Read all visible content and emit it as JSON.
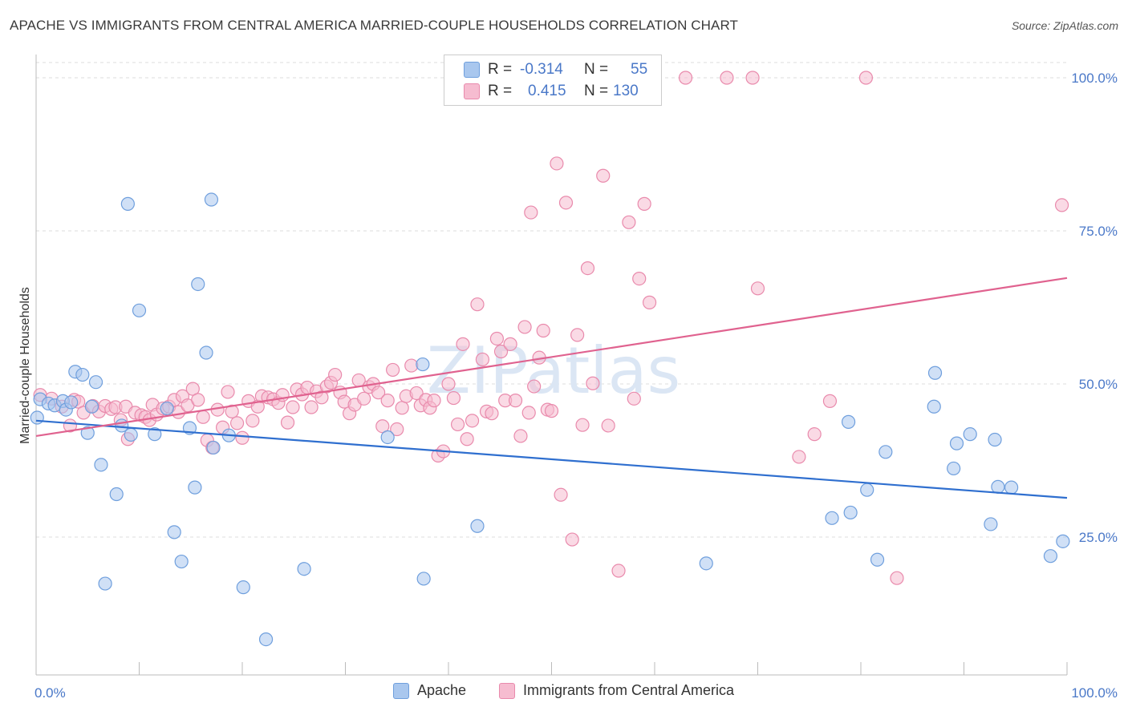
{
  "title": "APACHE VS IMMIGRANTS FROM CENTRAL AMERICA MARRIED-COUPLE HOUSEHOLDS CORRELATION CHART",
  "source": "Source: ZipAtlas.com",
  "colors": {
    "blue_fill": "#a9c7ee",
    "blue_stroke": "#6f9fdd",
    "blue_line": "#2f6fcf",
    "pink_fill": "#f6bcd0",
    "pink_stroke": "#e98aac",
    "pink_line": "#e0628f",
    "accent_text": "#4a78c8",
    "grid": "#dddddd"
  },
  "legend_top": {
    "rows": [
      {
        "r_label": "R =",
        "r_value": "-0.314",
        "n_label": "N =",
        "n_value": "55"
      },
      {
        "r_label": "R =",
        "r_value": "0.415",
        "n_label": "N =",
        "n_value": "130"
      }
    ]
  },
  "legend_bottom": {
    "items": [
      "Apache",
      "Immigrants from Central America"
    ]
  },
  "chart_data": {
    "type": "scatter",
    "title": "APACHE VS IMMIGRANTS FROM CENTRAL AMERICA MARRIED-COUPLE HOUSEHOLDS CORRELATION CHART",
    "xlabel": "",
    "ylabel": "Married-couple Households",
    "xlim": [
      0,
      100
    ],
    "ylim": [
      0,
      100
    ],
    "x_tick_labels": [
      "0.0%",
      "100.0%"
    ],
    "y_tick_labels": [
      "100.0%",
      "75.0%",
      "50.0%",
      "25.0%"
    ],
    "y_ticks": [
      100,
      75,
      50,
      25
    ],
    "watermark": "ZIPatlas",
    "series": [
      {
        "name": "Apache",
        "color": "blue",
        "trend": {
          "x": [
            0,
            100
          ],
          "y": [
            44.0,
            31.4
          ]
        },
        "points": [
          [
            0.4,
            47.5
          ],
          [
            1.2,
            46.8
          ],
          [
            1.8,
            46.5
          ],
          [
            2.6,
            47.2
          ],
          [
            2.9,
            45.8
          ],
          [
            3.4,
            47.0
          ],
          [
            3.8,
            52.0
          ],
          [
            4.5,
            51.5
          ],
          [
            5.0,
            42.0
          ],
          [
            5.4,
            46.3
          ],
          [
            5.8,
            50.3
          ],
          [
            6.3,
            36.8
          ],
          [
            6.7,
            17.4
          ],
          [
            7.8,
            32.0
          ],
          [
            8.3,
            43.2
          ],
          [
            8.9,
            79.4
          ],
          [
            9.2,
            41.7
          ],
          [
            10.0,
            62.0
          ],
          [
            11.5,
            41.8
          ],
          [
            12.7,
            46.0
          ],
          [
            13.4,
            25.8
          ],
          [
            14.1,
            21.0
          ],
          [
            14.9,
            42.8
          ],
          [
            15.4,
            33.1
          ],
          [
            15.7,
            66.3
          ],
          [
            16.5,
            55.1
          ],
          [
            17.0,
            80.1
          ],
          [
            17.2,
            39.6
          ],
          [
            18.7,
            41.6
          ],
          [
            20.1,
            16.8
          ],
          [
            22.3,
            8.3
          ],
          [
            26.0,
            19.8
          ],
          [
            34.1,
            41.3
          ],
          [
            37.5,
            53.2
          ],
          [
            37.6,
            18.2
          ],
          [
            42.8,
            26.8
          ],
          [
            65.0,
            20.7
          ],
          [
            77.2,
            28.1
          ],
          [
            78.8,
            43.8
          ],
          [
            79.0,
            29.0
          ],
          [
            80.6,
            32.7
          ],
          [
            81.6,
            21.3
          ],
          [
            82.4,
            38.9
          ],
          [
            87.1,
            46.3
          ],
          [
            87.2,
            51.8
          ],
          [
            89.0,
            36.2
          ],
          [
            89.3,
            40.3
          ],
          [
            90.6,
            41.8
          ],
          [
            92.6,
            27.1
          ],
          [
            93.0,
            40.9
          ],
          [
            93.3,
            33.2
          ],
          [
            94.6,
            33.1
          ],
          [
            98.4,
            21.9
          ],
          [
            99.6,
            24.3
          ],
          [
            0.1,
            44.5
          ]
        ]
      },
      {
        "name": "Immigrants from Central America",
        "color": "pink",
        "trend": {
          "x": [
            0,
            100
          ],
          "y": [
            41.5,
            67.3
          ]
        },
        "points": [
          [
            0.4,
            48.2
          ],
          [
            1.5,
            47.6
          ],
          [
            2.5,
            46.3
          ],
          [
            3.3,
            43.2
          ],
          [
            3.7,
            47.4
          ],
          [
            4.1,
            47.1
          ],
          [
            4.6,
            45.3
          ],
          [
            5.5,
            46.4
          ],
          [
            6.1,
            45.5
          ],
          [
            6.7,
            46.4
          ],
          [
            7.3,
            45.9
          ],
          [
            7.7,
            46.2
          ],
          [
            8.2,
            44.1
          ],
          [
            8.7,
            46.3
          ],
          [
            8.9,
            41.0
          ],
          [
            9.6,
            45.3
          ],
          [
            10.2,
            44.9
          ],
          [
            10.6,
            44.6
          ],
          [
            11.0,
            44.1
          ],
          [
            11.3,
            46.6
          ],
          [
            11.7,
            45.0
          ],
          [
            12.3,
            46.0
          ],
          [
            12.9,
            46.3
          ],
          [
            13.4,
            47.4
          ],
          [
            13.8,
            45.4
          ],
          [
            14.2,
            48.0
          ],
          [
            14.7,
            46.5
          ],
          [
            15.2,
            49.2
          ],
          [
            15.7,
            47.4
          ],
          [
            16.2,
            44.6
          ],
          [
            16.6,
            40.8
          ],
          [
            17.1,
            39.6
          ],
          [
            17.6,
            45.8
          ],
          [
            18.1,
            42.9
          ],
          [
            18.6,
            48.7
          ],
          [
            19.0,
            45.5
          ],
          [
            19.5,
            43.6
          ],
          [
            20.0,
            41.2
          ],
          [
            20.6,
            47.2
          ],
          [
            21.0,
            44.0
          ],
          [
            21.5,
            46.3
          ],
          [
            21.9,
            48.0
          ],
          [
            22.5,
            47.8
          ],
          [
            23.0,
            47.5
          ],
          [
            23.5,
            46.9
          ],
          [
            23.9,
            48.2
          ],
          [
            24.4,
            43.7
          ],
          [
            24.9,
            46.2
          ],
          [
            25.3,
            49.1
          ],
          [
            25.8,
            48.3
          ],
          [
            26.3,
            49.4
          ],
          [
            26.7,
            46.2
          ],
          [
            27.2,
            48.8
          ],
          [
            27.7,
            47.8
          ],
          [
            28.2,
            49.6
          ],
          [
            28.6,
            50.2
          ],
          [
            29.0,
            51.5
          ],
          [
            29.5,
            48.6
          ],
          [
            29.9,
            47.1
          ],
          [
            30.4,
            45.2
          ],
          [
            30.9,
            46.6
          ],
          [
            31.3,
            50.6
          ],
          [
            31.8,
            47.6
          ],
          [
            32.3,
            49.5
          ],
          [
            32.7,
            50.0
          ],
          [
            33.2,
            48.6
          ],
          [
            33.6,
            43.1
          ],
          [
            34.1,
            47.3
          ],
          [
            34.6,
            52.3
          ],
          [
            35.0,
            42.6
          ],
          [
            35.5,
            46.1
          ],
          [
            35.9,
            48.0
          ],
          [
            36.4,
            53.0
          ],
          [
            36.9,
            48.5
          ],
          [
            37.3,
            46.5
          ],
          [
            37.8,
            47.4
          ],
          [
            38.2,
            46.1
          ],
          [
            38.6,
            47.3
          ],
          [
            39.0,
            38.3
          ],
          [
            39.5,
            39.0
          ],
          [
            40.0,
            50.0
          ],
          [
            40.5,
            47.7
          ],
          [
            40.9,
            43.4
          ],
          [
            41.4,
            56.5
          ],
          [
            41.8,
            41.0
          ],
          [
            42.3,
            44.0
          ],
          [
            42.8,
            63.0
          ],
          [
            43.3,
            54.0
          ],
          [
            43.7,
            45.5
          ],
          [
            44.2,
            45.2
          ],
          [
            44.7,
            57.4
          ],
          [
            45.1,
            55.3
          ],
          [
            45.5,
            47.3
          ],
          [
            46.0,
            56.5
          ],
          [
            46.5,
            47.3
          ],
          [
            47.0,
            41.5
          ],
          [
            47.4,
            59.3
          ],
          [
            47.8,
            45.3
          ],
          [
            48.3,
            49.6
          ],
          [
            48.8,
            54.3
          ],
          [
            49.2,
            58.7
          ],
          [
            49.6,
            45.8
          ],
          [
            50.0,
            45.6
          ],
          [
            50.5,
            86.0
          ],
          [
            50.9,
            31.9
          ],
          [
            51.4,
            79.6
          ],
          [
            52.0,
            24.6
          ],
          [
            52.5,
            58.0
          ],
          [
            53.0,
            43.3
          ],
          [
            53.5,
            68.9
          ],
          [
            54.0,
            50.1
          ],
          [
            55.0,
            84.0
          ],
          [
            55.5,
            43.2
          ],
          [
            56.5,
            19.5
          ],
          [
            57.5,
            76.4
          ],
          [
            58.0,
            47.6
          ],
          [
            58.5,
            67.2
          ],
          [
            59.0,
            79.4
          ],
          [
            59.5,
            63.3
          ],
          [
            63.0,
            100.0
          ],
          [
            67.0,
            100.0
          ],
          [
            69.5,
            100.0
          ],
          [
            70.0,
            65.6
          ],
          [
            74.0,
            38.1
          ],
          [
            75.5,
            41.8
          ],
          [
            77.0,
            47.2
          ],
          [
            80.5,
            100.0
          ],
          [
            83.5,
            18.3
          ],
          [
            99.5,
            79.2
          ],
          [
            48.0,
            78.0
          ]
        ]
      }
    ]
  }
}
